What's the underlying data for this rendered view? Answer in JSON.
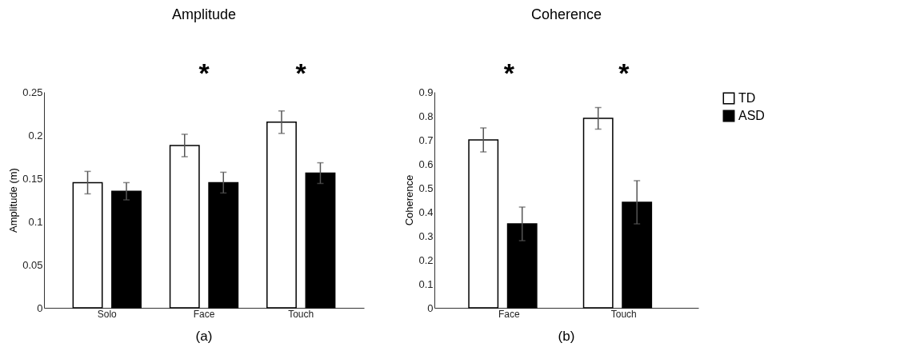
{
  "chart_data": [
    {
      "type": "bar",
      "title": "Amplitude",
      "ylabel": "Amplitude (m)",
      "categories": [
        "Solo",
        "Face",
        "Touch"
      ],
      "series": [
        {
          "name": "TD",
          "color": "#ffffff",
          "values": [
            0.145,
            0.188,
            0.215
          ],
          "errors": [
            0.013,
            0.013,
            0.013
          ]
        },
        {
          "name": "ASD",
          "color": "#000000",
          "values": [
            0.135,
            0.145,
            0.156
          ],
          "errors": [
            0.01,
            0.012,
            0.012
          ]
        }
      ],
      "ylim": [
        0,
        0.25
      ],
      "yticks": [
        0,
        0.05,
        0.1,
        0.15,
        0.2,
        0.25
      ],
      "grid": false,
      "legend": "right",
      "annotations": [
        "*",
        "*",
        "(a)"
      ]
    },
    {
      "type": "bar",
      "title": "Coherence",
      "ylabel": "Coherence",
      "categories": [
        "Face",
        "Touch"
      ],
      "series": [
        {
          "name": "TD",
          "color": "#ffffff",
          "values": [
            0.7,
            0.79
          ],
          "errors": [
            0.05,
            0.045
          ]
        },
        {
          "name": "ASD",
          "color": "#000000",
          "values": [
            0.35,
            0.44
          ],
          "errors": [
            0.07,
            0.09
          ]
        }
      ],
      "ylim": [
        0,
        0.9
      ],
      "yticks": [
        0,
        0.1,
        0.2,
        0.3,
        0.4,
        0.5,
        0.6,
        0.7,
        0.8,
        0.9
      ],
      "grid": false,
      "legend": "right",
      "annotations": [
        "*",
        "*",
        "(b)"
      ]
    }
  ]
}
